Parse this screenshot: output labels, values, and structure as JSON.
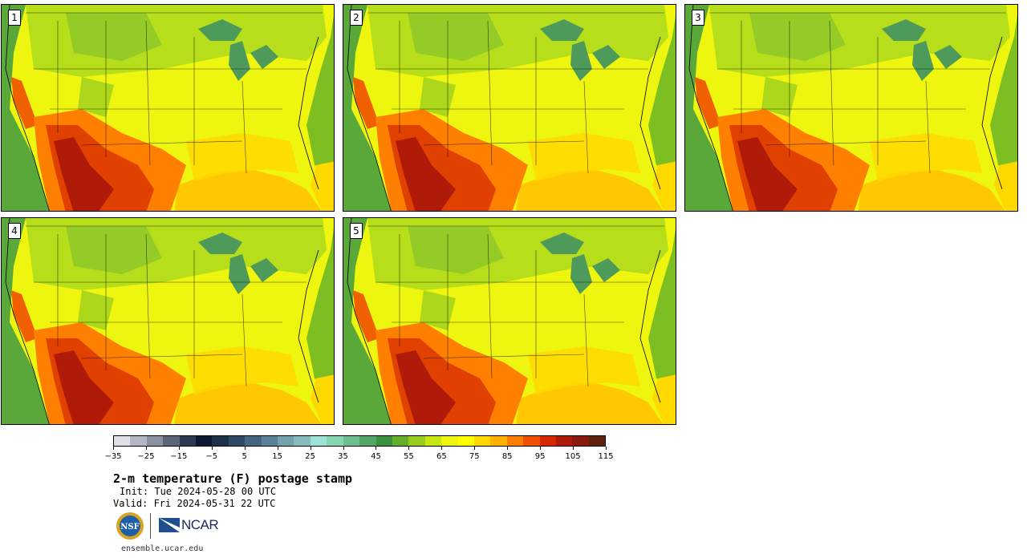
{
  "panels": [
    {
      "label": "1"
    },
    {
      "label": "2"
    },
    {
      "label": "3"
    },
    {
      "label": "4"
    },
    {
      "label": "5"
    }
  ],
  "colorbar": {
    "colors": [
      "#e0e0e8",
      "#b4b8c4",
      "#8a90a0",
      "#5c6478",
      "#2e3850",
      "#0e1830",
      "#1c3048",
      "#2e4a62",
      "#44657c",
      "#5a8296",
      "#73a2ac",
      "#88bcbc",
      "#9ee2d8",
      "#86d6b2",
      "#6cc090",
      "#52a668",
      "#3c9040",
      "#62b02a",
      "#98cc1e",
      "#c8e614",
      "#eef50e",
      "#ffff00",
      "#ffd800",
      "#ffb000",
      "#ff8000",
      "#f05000",
      "#d62800",
      "#b01a08",
      "#8a1a10",
      "#602010"
    ],
    "tick_labels": [
      "−35",
      "−25",
      "−15",
      "−5",
      "5",
      "15",
      "25",
      "35",
      "45",
      "55",
      "65",
      "75",
      "85",
      "95",
      "105",
      "115"
    ]
  },
  "title": "2-m temperature (F) postage stamp",
  "init": "Init: Tue 2024-05-28 00 UTC",
  "valid": "Valid: Fri 2024-05-31 22 UTC",
  "logos": {
    "nsf": "NSF",
    "ncar": "NCAR"
  },
  "website": "ensemble.ucar.edu"
}
